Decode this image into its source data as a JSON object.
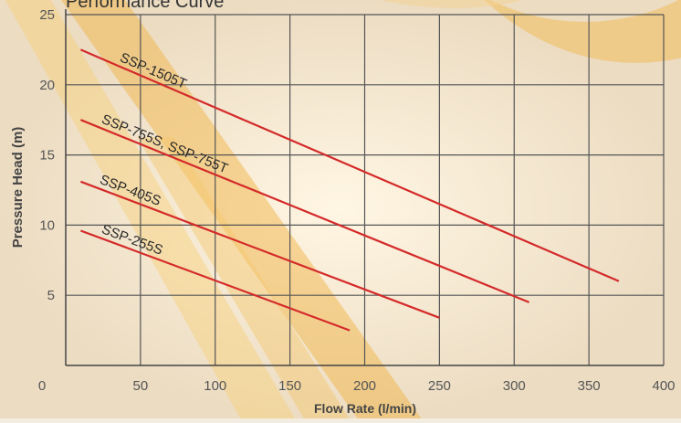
{
  "chart_data": {
    "type": "line",
    "title": "Performance Curve",
    "xlabel": "Flow Rate (l/min)",
    "ylabel": "Pressure Head (m)",
    "xlim": [
      0,
      400
    ],
    "ylim": [
      0,
      25
    ],
    "x_ticks": [
      0,
      50,
      100,
      150,
      200,
      250,
      300,
      350,
      400
    ],
    "y_ticks": [
      5,
      10,
      15,
      20,
      25
    ],
    "grid": true,
    "line_color": "#d42a2a",
    "series": [
      {
        "name": "SSP-1505T",
        "points": [
          [
            10,
            22.5
          ],
          [
            370,
            6.0
          ]
        ]
      },
      {
        "name": "SSP-755S, SSP-755T",
        "points": [
          [
            10,
            17.5
          ],
          [
            310,
            4.5
          ]
        ]
      },
      {
        "name": "SSP-405S",
        "points": [
          [
            10,
            13.1
          ],
          [
            250,
            3.4
          ]
        ]
      },
      {
        "name": "SSP-255S",
        "points": [
          [
            10,
            9.6
          ],
          [
            190,
            2.5
          ]
        ]
      }
    ]
  }
}
